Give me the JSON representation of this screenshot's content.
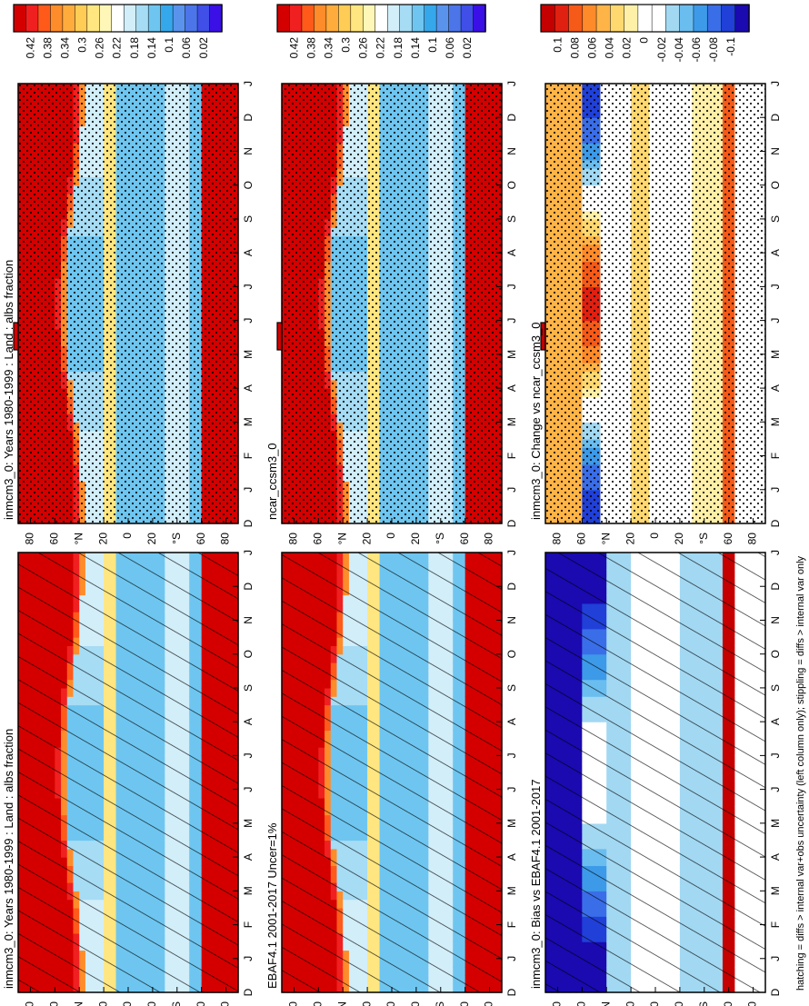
{
  "footnote": "hatching = diffs > internal var+obs uncertainty (left column only); stippling = diffs > internal var only",
  "colors": {
    "abs_scale": [
      "#3a10e6",
      "#3f4fe8",
      "#4c75ea",
      "#5a93ec",
      "#35a8ec",
      "#6ec6f0",
      "#a6dcf4",
      "#d2eef9",
      "#ffffff",
      "#fff7b8",
      "#ffe680",
      "#ffcc55",
      "#ffac3c",
      "#ff8c2a",
      "#ff5a1a",
      "#f02020",
      "#d40000"
    ],
    "diff_scale": [
      "#1a0ab0",
      "#2040d8",
      "#3a6ee8",
      "#3d9ae8",
      "#6abdef",
      "#a2d8f2",
      "#ffffff",
      "#ffffff",
      "#fff0a8",
      "#ffd870",
      "#ffb447",
      "#ff8a2a",
      "#f55a18",
      "#e02010",
      "#c40000"
    ]
  },
  "colorbars": {
    "abs_ticks": [
      "0.42",
      "0.38",
      "0.34",
      "0.3",
      "0.26",
      "0.22",
      "0.18",
      "0.14",
      "0.1",
      "0.06",
      "0.02"
    ],
    "diff_ticks": [
      "0.1",
      "0.08",
      "0.06",
      "0.04",
      "0.02",
      "0",
      "-0.02",
      "-0.04",
      "-0.06",
      "-0.08",
      "-0.1"
    ]
  },
  "chart_data": [
    {
      "type": "heatmap",
      "title": "inmcm3_0: Years 1980-1999 : Land : albs fraction",
      "x_ticks": [
        "D",
        "J",
        "F",
        "M",
        "A",
        "M",
        "J",
        "J",
        "A",
        "S",
        "O",
        "N",
        "D",
        "J"
      ],
      "y_ticks": [
        "80",
        "60",
        "40",
        "20",
        "0",
        "20",
        "40",
        "60",
        "80"
      ],
      "y_hemisphere_labels": [
        "°N",
        "°S"
      ],
      "colorbar": "abs",
      "overlay": "hatching"
    },
    {
      "type": "heatmap",
      "title": "inmcm3_0: Years 1980-1999 : Land : albs fraction",
      "x_ticks": [
        "D",
        "J",
        "F",
        "M",
        "A",
        "M",
        "J",
        "J",
        "A",
        "S",
        "O",
        "N",
        "D",
        "J"
      ],
      "y_ticks": [
        "80",
        "60",
        "40",
        "20",
        "0",
        "20",
        "40",
        "60",
        "80"
      ],
      "y_hemisphere_labels": [
        "°N",
        "°S"
      ],
      "colorbar": "abs",
      "overlay": "stippling"
    },
    {
      "type": "heatmap",
      "title": "EBAF4.1 2001-2017 Uncer=1%",
      "x_ticks": [
        "D",
        "J",
        "F",
        "M",
        "A",
        "M",
        "J",
        "J",
        "A",
        "S",
        "O",
        "N",
        "D",
        "J"
      ],
      "y_ticks": [
        "80",
        "60",
        "40",
        "20",
        "0",
        "20",
        "40",
        "60",
        "80"
      ],
      "y_hemisphere_labels": [
        "°N",
        "°S"
      ],
      "colorbar": "abs",
      "overlay": "hatching"
    },
    {
      "type": "heatmap",
      "title": "ncar_ccsm3_0",
      "x_ticks": [
        "D",
        "J",
        "F",
        "M",
        "A",
        "M",
        "J",
        "J",
        "A",
        "S",
        "O",
        "N",
        "D",
        "J"
      ],
      "y_ticks": [
        "80",
        "60",
        "40",
        "20",
        "0",
        "20",
        "40",
        "60",
        "80"
      ],
      "y_hemisphere_labels": [
        "°N",
        "°S"
      ],
      "colorbar": "abs",
      "overlay": "stippling"
    },
    {
      "type": "heatmap",
      "title": "inmcm3_0: Bias vs EBAF4.1 2001-2017",
      "x_ticks": [
        "D",
        "J",
        "F",
        "M",
        "A",
        "M",
        "J",
        "J",
        "A",
        "S",
        "O",
        "N",
        "D",
        "J"
      ],
      "y_ticks": [
        "80",
        "60",
        "40",
        "20",
        "0",
        "20",
        "40",
        "60",
        "80"
      ],
      "y_hemisphere_labels": [
        "°N",
        "°S"
      ],
      "colorbar": "diff",
      "overlay": "hatching"
    },
    {
      "type": "heatmap",
      "title": "inmcm3_0: Change vs ncar_ccsm3_0",
      "x_ticks": [
        "D",
        "J",
        "F",
        "M",
        "A",
        "M",
        "J",
        "J",
        "A",
        "S",
        "O",
        "N",
        "D",
        "J"
      ],
      "y_ticks": [
        "80",
        "60",
        "40",
        "20",
        "0",
        "20",
        "40",
        "60",
        "80"
      ],
      "y_hemisphere_labels": [
        "°N",
        "°S"
      ],
      "colorbar": "diff",
      "overlay": "stippling"
    }
  ]
}
